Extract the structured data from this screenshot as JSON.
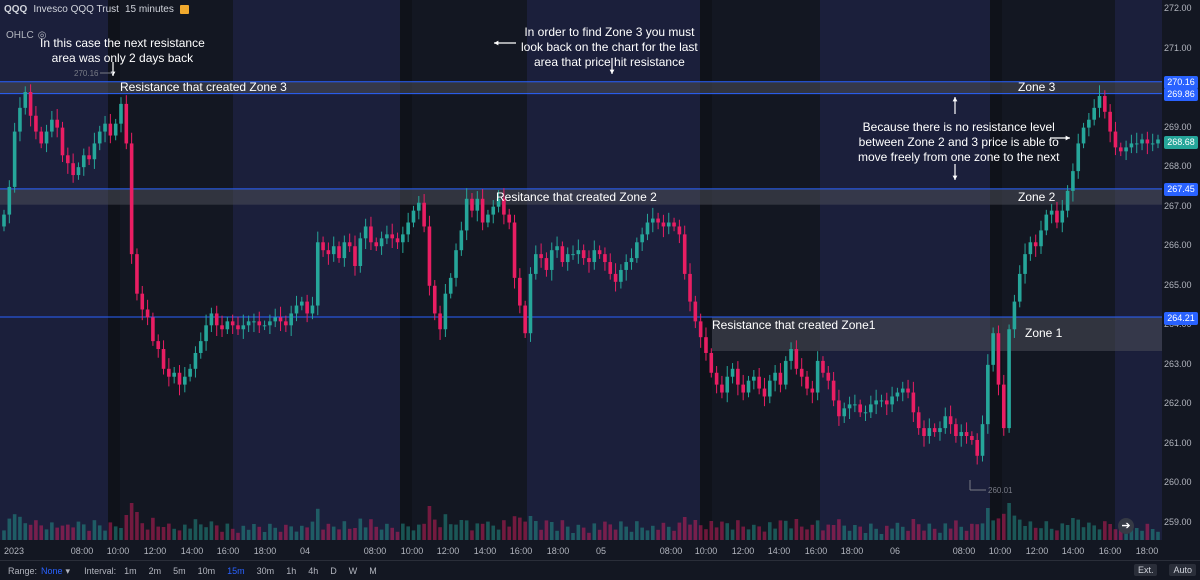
{
  "header": {
    "symbol": "QQQ",
    "name": "Invesco QQQ Trust",
    "interval": "15 minutes",
    "ohlc": "OHLC"
  },
  "colors": {
    "up": "#26a69a",
    "down": "#e91e63",
    "background": "#131722",
    "session": "#1b1f3b",
    "zone_line": "#2962ff",
    "zone_fill": "#4a4d57"
  },
  "y_axis": {
    "ticks": [
      "272.00",
      "271.00",
      "270.00",
      "269.00",
      "268.00",
      "267.00",
      "266.00",
      "265.00",
      "264.00",
      "263.00",
      "262.00",
      "261.00",
      "260.00",
      "259.00"
    ]
  },
  "price_tags": {
    "zone3": "270.16",
    "zone3_b": "269.86",
    "last": "268.68",
    "zone2": "267.45",
    "zone1": "264.21"
  },
  "markers": {
    "high_label": "270.16",
    "low_label": "260.01"
  },
  "x_axis": {
    "ticks": [
      "2023",
      "08:00",
      "10:00",
      "12:00",
      "14:00",
      "16:00",
      "18:00",
      "04",
      "08:00",
      "10:00",
      "12:00",
      "14:00",
      "16:00",
      "18:00",
      "05",
      "08:00",
      "10:00",
      "12:00",
      "14:00",
      "16:00",
      "18:00",
      "06",
      "08:00",
      "10:00",
      "12:00",
      "14:00",
      "16:00",
      "18:00"
    ]
  },
  "annotations": {
    "note_left": [
      "In this case the next resistance",
      "area was only 2 days back"
    ],
    "note_top": [
      "In order to find Zone 3 you must",
      "look back on the chart for the last",
      "area that price hit resistance"
    ],
    "note_right": [
      "Because there is no resistance level",
      "between Zone 2 and 3 price is able to",
      "move freely from one zone to the next"
    ],
    "res_zone3": "Resistance that created Zone 3",
    "res_zone2": "Resitance that created Zone 2",
    "res_zone1": "Resistance that created Zone1",
    "zone3": "Zone 3",
    "zone2": "Zone 2",
    "zone1": "Zone 1"
  },
  "toolbar": {
    "range_label": "Range:",
    "range_value": "None",
    "interval_label": "Interval:",
    "intervals": [
      "1m",
      "2m",
      "5m",
      "10m",
      "15m",
      "30m",
      "1h",
      "4h",
      "D",
      "W",
      "M"
    ],
    "selected_interval": "15m",
    "ext": "Ext.",
    "auto": "Auto"
  },
  "chart_data": {
    "type": "candlestick",
    "title": "QQQ · Invesco QQQ Trust · 15 minutes",
    "ylim": [
      258.6,
      272.2
    ],
    "zones": [
      {
        "name": "Zone 3",
        "top": 270.16,
        "bottom": 269.86
      },
      {
        "name": "Zone 2",
        "top": 267.45,
        "bottom": 267.05
      },
      {
        "name": "Zone 1",
        "top": 264.21,
        "bottom": 263.35
      }
    ],
    "closes": [
      266.8,
      267.5,
      268.9,
      269.5,
      269.9,
      269.3,
      268.9,
      268.6,
      268.9,
      269.2,
      269.0,
      268.3,
      268.1,
      267.8,
      268.0,
      268.3,
      268.2,
      268.6,
      268.9,
      269.1,
      268.8,
      269.1,
      269.6,
      268.6,
      265.8,
      264.8,
      264.4,
      264.2,
      263.6,
      263.4,
      262.9,
      262.7,
      262.8,
      262.5,
      262.7,
      262.9,
      263.3,
      263.6,
      264.0,
      264.3,
      264.0,
      263.9,
      264.1,
      264.0,
      263.9,
      264.0,
      264.1,
      264.1,
      264.0,
      264.0,
      264.1,
      264.2,
      264.1,
      264.0,
      264.3,
      264.5,
      264.6,
      264.3,
      264.5,
      266.1,
      265.9,
      265.8,
      266.0,
      265.7,
      266.1,
      266.0,
      265.5,
      266.2,
      266.5,
      266.1,
      266.0,
      266.2,
      266.3,
      266.2,
      266.1,
      266.3,
      266.6,
      266.9,
      267.1,
      266.5,
      265.0,
      264.3,
      263.9,
      264.8,
      265.2,
      265.9,
      266.4,
      267.2,
      266.9,
      267.2,
      266.6,
      266.8,
      267.0,
      267.2,
      266.8,
      266.6,
      265.2,
      264.5,
      263.8,
      265.3,
      265.8,
      265.7,
      265.4,
      265.9,
      266.0,
      265.6,
      265.8,
      265.8,
      265.9,
      265.7,
      265.6,
      265.9,
      265.8,
      265.6,
      265.3,
      265.1,
      265.4,
      265.6,
      265.7,
      266.1,
      266.3,
      266.6,
      266.7,
      266.6,
      266.5,
      266.6,
      266.5,
      266.3,
      265.3,
      264.6,
      264.1,
      263.7,
      263.3,
      262.8,
      262.5,
      262.3,
      262.7,
      262.9,
      262.5,
      262.3,
      262.6,
      262.7,
      262.4,
      262.2,
      262.6,
      262.8,
      262.5,
      263.1,
      263.4,
      262.9,
      262.7,
      262.4,
      262.3,
      263.1,
      262.8,
      262.6,
      262.1,
      261.7,
      261.9,
      262.0,
      262.0,
      261.8,
      261.8,
      262.0,
      262.1,
      262.1,
      262.0,
      262.2,
      262.3,
      262.4,
      262.3,
      261.8,
      261.4,
      261.2,
      261.4,
      261.3,
      261.4,
      261.7,
      261.5,
      261.2,
      261.3,
      261.2,
      261.1,
      260.7,
      261.5,
      263.0,
      263.8,
      262.5,
      261.4,
      263.9,
      264.6,
      265.3,
      265.8,
      266.1,
      266.0,
      266.4,
      266.8,
      266.9,
      266.6,
      266.9,
      267.4,
      267.9,
      268.6,
      269.0,
      269.2,
      269.5,
      269.8,
      269.4,
      268.9,
      268.5,
      268.4,
      268.5,
      268.6,
      268.6,
      268.7,
      268.6,
      268.6,
      268.7
    ]
  }
}
